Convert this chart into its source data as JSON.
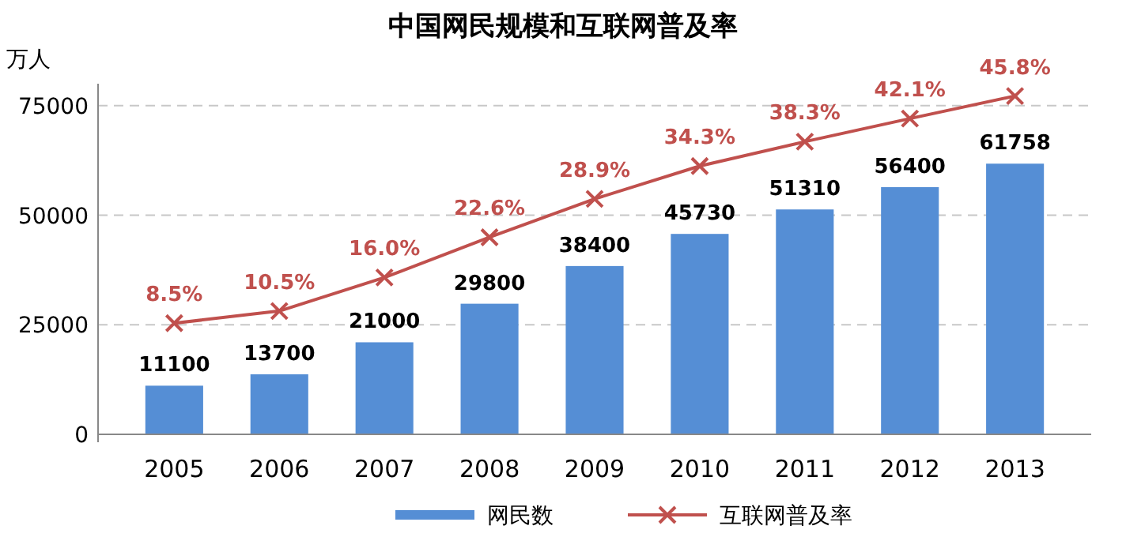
{
  "chart_data": {
    "type": "bar",
    "title": "中国网民规模和互联网普及率",
    "ylabel": "万人",
    "categories": [
      "2005",
      "2006",
      "2007",
      "2008",
      "2009",
      "2010",
      "2011",
      "2012",
      "2013"
    ],
    "series": [
      {
        "name": "网民数",
        "color": "#558ed5",
        "values": [
          11100,
          13700,
          21000,
          29800,
          38400,
          45730,
          51310,
          56400,
          61758
        ],
        "value_labels": [
          "11100",
          "13700",
          "21000",
          "29800",
          "38400",
          "45730",
          "51310",
          "56400",
          "61758"
        ]
      },
      {
        "name": "互联网普及率",
        "type": "line",
        "axis": "y2",
        "color": "#c0504d",
        "marker": "cross",
        "values": [
          8.5,
          10.5,
          16.0,
          22.6,
          28.9,
          34.3,
          38.3,
          42.1,
          45.8
        ],
        "value_labels": [
          "8.5%",
          "10.5%",
          "16.0%",
          "22.6%",
          "28.9%",
          "34.3%",
          "38.3%",
          "42.1%",
          "45.8%"
        ]
      }
    ],
    "ylim": [
      0,
      80000
    ],
    "yticks": [
      0,
      25000,
      50000,
      75000
    ],
    "grid": "y",
    "legend": "bottom",
    "tick_labels": "xy"
  }
}
